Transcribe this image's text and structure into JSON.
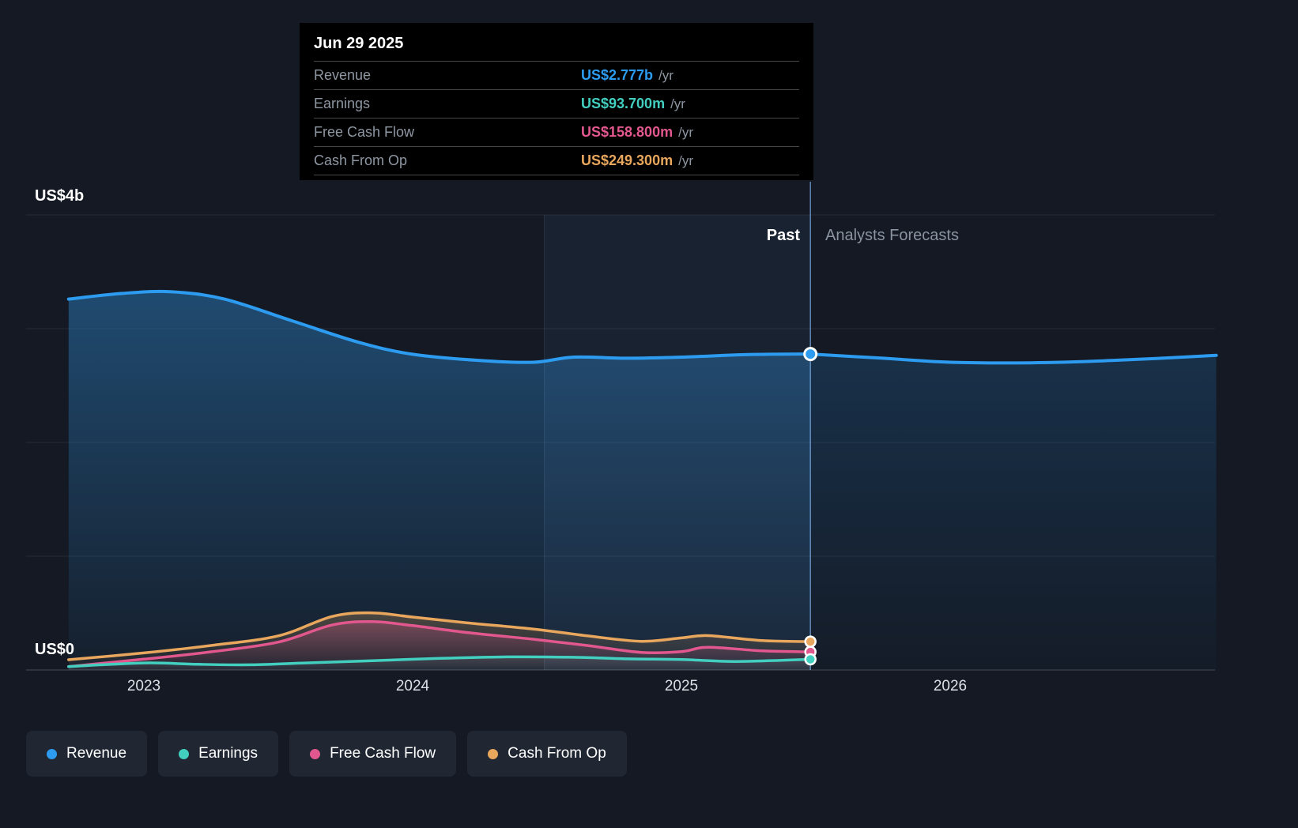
{
  "tooltip": {
    "date": "Jun 29 2025",
    "rows": [
      {
        "label": "Revenue",
        "value": "US$2.777b",
        "unit": "/yr"
      },
      {
        "label": "Earnings",
        "value": "US$93.700m",
        "unit": "/yr"
      },
      {
        "label": "Free Cash Flow",
        "value": "US$158.800m",
        "unit": "/yr"
      },
      {
        "label": "Cash From Op",
        "value": "US$249.300m",
        "unit": "/yr"
      }
    ]
  },
  "legend": {
    "items": [
      {
        "label": "Revenue"
      },
      {
        "label": "Earnings"
      },
      {
        "label": "Free Cash Flow"
      },
      {
        "label": "Cash From Op"
      }
    ]
  },
  "colors": {
    "revenue": "#2d9cf0",
    "earnings": "#43cfc0",
    "free_cash_flow": "#e2588e",
    "cash_from_op": "#e9a75e",
    "background": "#141923",
    "tooltip_bg": "#000000",
    "past_label": "#ffffff",
    "forecast_label": "#8a93a0"
  },
  "chart_data": {
    "type": "line",
    "title": "",
    "x_unit": "decimal_year",
    "x_domain": [
      2022.56,
      2026.99
    ],
    "x_ticks": [
      {
        "t": 2023,
        "label": "2023"
      },
      {
        "t": 2024,
        "label": "2024"
      },
      {
        "t": 2025,
        "label": "2025"
      },
      {
        "t": 2026,
        "label": "2026"
      }
    ],
    "y_axis": {
      "top_label": "US$4b",
      "bottom_label": "US$0",
      "max_billions": 4,
      "min_billions": 0,
      "grid": true
    },
    "divider": {
      "t": 2025.48,
      "date": "Jun 29 2025",
      "past_label": "Past",
      "forecast_label": "Analysts Forecasts"
    },
    "highlight_band": {
      "from_t": 2024.49,
      "to_t": 2025.48
    },
    "series": [
      {
        "name": "Revenue",
        "color": "#2d9cf0",
        "value_scale": "billions",
        "current": 2.777,
        "current_label": "US$2.777b",
        "past": [
          [
            2022.72,
            3.26
          ],
          [
            2022.92,
            3.31
          ],
          [
            2023.1,
            3.325
          ],
          [
            2023.3,
            3.26
          ],
          [
            2023.55,
            3.07
          ],
          [
            2023.8,
            2.88
          ],
          [
            2024.0,
            2.775
          ],
          [
            2024.25,
            2.72
          ],
          [
            2024.45,
            2.705
          ],
          [
            2024.6,
            2.75
          ],
          [
            2024.8,
            2.74
          ],
          [
            2025.0,
            2.75
          ],
          [
            2025.25,
            2.772
          ],
          [
            2025.48,
            2.777
          ]
        ],
        "forecast": [
          [
            2025.48,
            2.777
          ],
          [
            2025.75,
            2.74
          ],
          [
            2026.0,
            2.705
          ],
          [
            2026.3,
            2.7
          ],
          [
            2026.6,
            2.72
          ],
          [
            2026.99,
            2.765
          ]
        ]
      },
      {
        "name": "Earnings",
        "color": "#43cfc0",
        "value_scale": "millions",
        "current": 93.7,
        "current_label": "US$93.700m",
        "past": [
          [
            2022.72,
            30
          ],
          [
            2023.0,
            62
          ],
          [
            2023.2,
            50
          ],
          [
            2023.4,
            46
          ],
          [
            2023.6,
            62
          ],
          [
            2023.85,
            82
          ],
          [
            2024.1,
            102
          ],
          [
            2024.35,
            115
          ],
          [
            2024.6,
            112
          ],
          [
            2024.8,
            98
          ],
          [
            2025.0,
            92
          ],
          [
            2025.2,
            75
          ],
          [
            2025.48,
            93.7
          ]
        ],
        "forecast": []
      },
      {
        "name": "Free Cash Flow",
        "color": "#e2588e",
        "value_scale": "millions",
        "current": 158.8,
        "current_label": "US$158.800m",
        "past": [
          [
            2022.72,
            30
          ],
          [
            2023.0,
            95
          ],
          [
            2023.25,
            160
          ],
          [
            2023.5,
            245
          ],
          [
            2023.7,
            395
          ],
          [
            2023.85,
            425
          ],
          [
            2024.0,
            390
          ],
          [
            2024.2,
            330
          ],
          [
            2024.45,
            270
          ],
          [
            2024.65,
            215
          ],
          [
            2024.85,
            155
          ],
          [
            2025.0,
            162
          ],
          [
            2025.1,
            200
          ],
          [
            2025.3,
            168
          ],
          [
            2025.48,
            158.8
          ]
        ],
        "forecast": []
      },
      {
        "name": "Cash From Op",
        "color": "#e9a75e",
        "value_scale": "millions",
        "current": 249.3,
        "current_label": "US$249.300m",
        "past": [
          [
            2022.72,
            90
          ],
          [
            2023.0,
            150
          ],
          [
            2023.25,
            215
          ],
          [
            2023.5,
            300
          ],
          [
            2023.7,
            470
          ],
          [
            2023.85,
            502
          ],
          [
            2024.0,
            465
          ],
          [
            2024.2,
            415
          ],
          [
            2024.45,
            360
          ],
          [
            2024.65,
            300
          ],
          [
            2024.85,
            252
          ],
          [
            2025.0,
            282
          ],
          [
            2025.1,
            302
          ],
          [
            2025.3,
            258
          ],
          [
            2025.48,
            249.3
          ]
        ],
        "forecast": []
      }
    ]
  }
}
